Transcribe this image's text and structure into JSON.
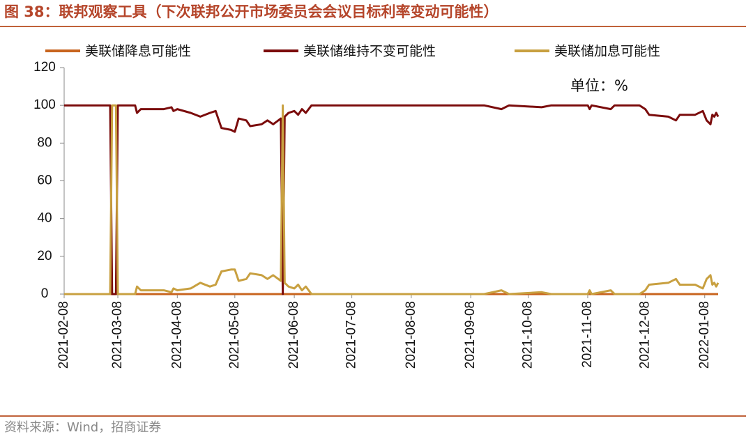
{
  "chart_data": {
    "type": "line",
    "title": "图 38：联邦观察工具（下次联邦公开市场委员会会议目标利率变动可能性）",
    "unit_label": "单位：%",
    "source": "资料来源：Wind，招商证券",
    "x": [
      "2021-02-08",
      "2021-03-04",
      "2021-03-05",
      "2021-03-07",
      "2021-03-08",
      "2021-03-17",
      "2021-03-18",
      "2021-03-20",
      "2021-04-01",
      "2021-04-05",
      "2021-04-06",
      "2021-04-08",
      "2021-04-15",
      "2021-04-20",
      "2021-04-25",
      "2021-04-28",
      "2021-05-01",
      "2021-05-06",
      "2021-05-08",
      "2021-05-10",
      "2021-05-14",
      "2021-05-16",
      "2021-05-22",
      "2021-05-25",
      "2021-05-28",
      "2021-06-01",
      "2021-06-02",
      "2021-06-03",
      "2021-06-05",
      "2021-06-08",
      "2021-06-10",
      "2021-06-12",
      "2021-06-14",
      "2021-06-17",
      "2021-09-15",
      "2021-09-24",
      "2021-09-28",
      "2021-10-15",
      "2021-10-20",
      "2021-11-08",
      "2021-11-09",
      "2021-11-10",
      "2021-11-20",
      "2021-11-22",
      "2021-12-05",
      "2021-12-08",
      "2021-12-10",
      "2021-12-20",
      "2021-12-24",
      "2021-12-26",
      "2022-01-03",
      "2022-01-07",
      "2022-01-09",
      "2022-01-11",
      "2022-01-12",
      "2022-01-13",
      "2022-01-14",
      "2022-01-15"
    ],
    "series": [
      {
        "name": "美联储降息可能性",
        "color": "#c8641e",
        "values": [
          0,
          0,
          0,
          0,
          0,
          0,
          0,
          0,
          0,
          0,
          0,
          0,
          0,
          0,
          0,
          0,
          0,
          0,
          0,
          0,
          0,
          0,
          0,
          0,
          0,
          0,
          0,
          0,
          0,
          0,
          0,
          0,
          0,
          0,
          0,
          0,
          0,
          0,
          0,
          0,
          0,
          0,
          0,
          0,
          0,
          0,
          0,
          0,
          0,
          0,
          0,
          0,
          0,
          0,
          0,
          0,
          0,
          0
        ]
      },
      {
        "name": "美联储维持不变可能性",
        "color": "#7b0c0c",
        "values": [
          100,
          100,
          0,
          0,
          100,
          100,
          96,
          98,
          98,
          99,
          97,
          98,
          96,
          94,
          96,
          97,
          88,
          87,
          86,
          93,
          92,
          89,
          90,
          92,
          90,
          93,
          0,
          94,
          96,
          97,
          95,
          98,
          96,
          100,
          100,
          98,
          100,
          99,
          100,
          100,
          98,
          100,
          98,
          100,
          100,
          98,
          95,
          94,
          92,
          95,
          95,
          97,
          92,
          90,
          95,
          94,
          96,
          94
        ]
      },
      {
        "name": "美联储加息可能性",
        "color": "#c8a040",
        "values": [
          0,
          0,
          100,
          100,
          0,
          0,
          4,
          2,
          2,
          1,
          3,
          2,
          3,
          6,
          4,
          5,
          12,
          13,
          13,
          7,
          8,
          11,
          10,
          8,
          10,
          7,
          100,
          6,
          4,
          3,
          5,
          2,
          4,
          0,
          0,
          2,
          0,
          1,
          0,
          0,
          2,
          0,
          2,
          0,
          0,
          2,
          5,
          6,
          8,
          5,
          5,
          3,
          8,
          10,
          5,
          6,
          4,
          6
        ]
      }
    ],
    "xlim": [
      "2021-02-08",
      "2022-01-15"
    ],
    "xticks": [
      "2021-02-08",
      "2021-03-08",
      "2021-04-08",
      "2021-05-08",
      "2021-06-08",
      "2021-07-08",
      "2021-08-08",
      "2021-09-08",
      "2021-10-08",
      "2021-11-08",
      "2021-12-08",
      "2022-01-08"
    ],
    "ylim": [
      0,
      120
    ],
    "yticks": [
      0,
      20,
      40,
      60,
      80,
      100,
      120
    ]
  }
}
